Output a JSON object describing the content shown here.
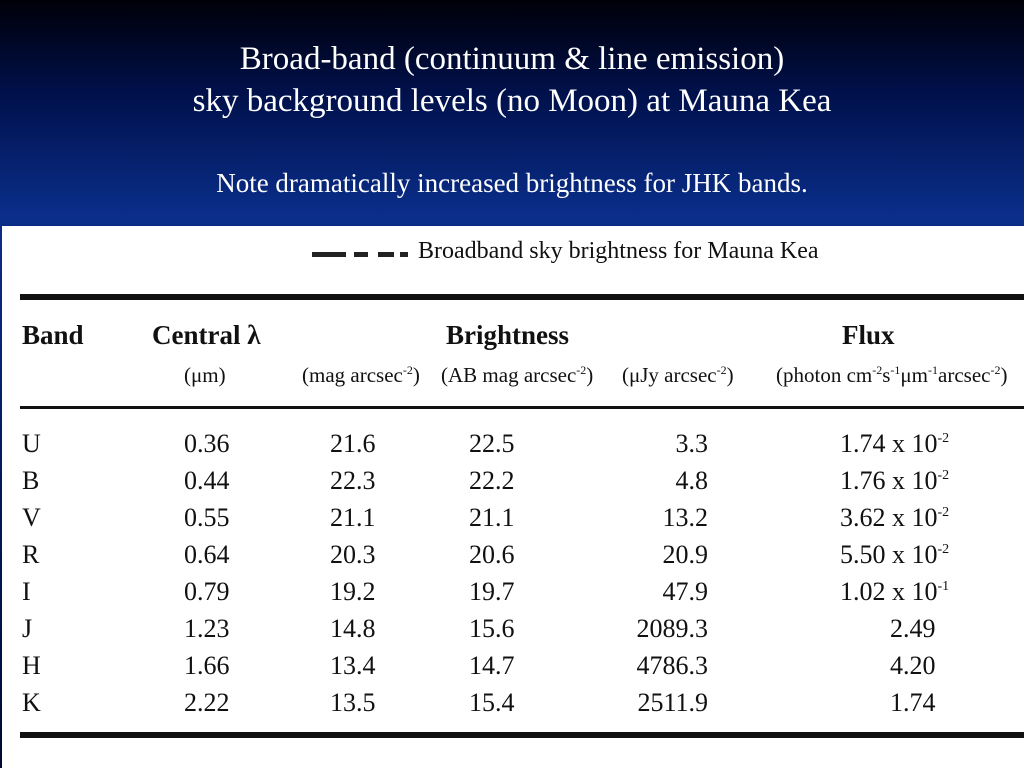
{
  "slide": {
    "title_line1": "Broad-band (continuum & line emission)",
    "title_line2": "sky background levels (no Moon) at Mauna Kea",
    "note": "Note dramatically increased brightness for JHK bands."
  },
  "table": {
    "caption": "Broadband sky brightness for Mauna Kea",
    "headers": {
      "band": "Band",
      "central": "Central λ",
      "central_unit": "(μm)",
      "brightness": "Brightness",
      "mag_unit_prefix": "(mag arcsec",
      "ab_unit_prefix": "(AB mag arcsec",
      "jy_unit_prefix": "(μJy arcsec",
      "exp_neg2": "-2",
      "exp_neg1": "-1",
      "close_paren": ")",
      "flux": "Flux",
      "photon_unit_a": "(photon cm",
      "photon_unit_b": "s",
      "photon_unit_c": "μm",
      "photon_unit_d": "arcsec"
    },
    "rows": [
      {
        "band": "U",
        "lambda": "0.36",
        "mag": "21.6",
        "ab": "22.5",
        "ujy": "3.3",
        "photon_mant": "1.74 x 10",
        "photon_exp": "-2"
      },
      {
        "band": "B",
        "lambda": "0.44",
        "mag": "22.3",
        "ab": "22.2",
        "ujy": "4.8",
        "photon_mant": "1.76 x 10",
        "photon_exp": "-2"
      },
      {
        "band": "V",
        "lambda": "0.55",
        "mag": "21.1",
        "ab": "21.1",
        "ujy": "13.2",
        "photon_mant": "3.62 x 10",
        "photon_exp": "-2"
      },
      {
        "band": "R",
        "lambda": "0.64",
        "mag": "20.3",
        "ab": "20.6",
        "ujy": "20.9",
        "photon_mant": "5.50 x 10",
        "photon_exp": "-2"
      },
      {
        "band": "I",
        "lambda": "0.79",
        "mag": "19.2",
        "ab": "19.7",
        "ujy": "47.9",
        "photon_mant": "1.02 x 10",
        "photon_exp": "-1"
      },
      {
        "band": "J",
        "lambda": "1.23",
        "mag": "14.8",
        "ab": "15.6",
        "ujy": "2089.3",
        "photon_mant": "2.49",
        "photon_exp": ""
      },
      {
        "band": "H",
        "lambda": "1.66",
        "mag": "13.4",
        "ab": "14.7",
        "ujy": "4786.3",
        "photon_mant": "4.20",
        "photon_exp": ""
      },
      {
        "band": "K",
        "lambda": "2.22",
        "mag": "13.5",
        "ab": "15.4",
        "ujy": "2511.9",
        "photon_mant": "1.74",
        "photon_exp": ""
      }
    ]
  }
}
